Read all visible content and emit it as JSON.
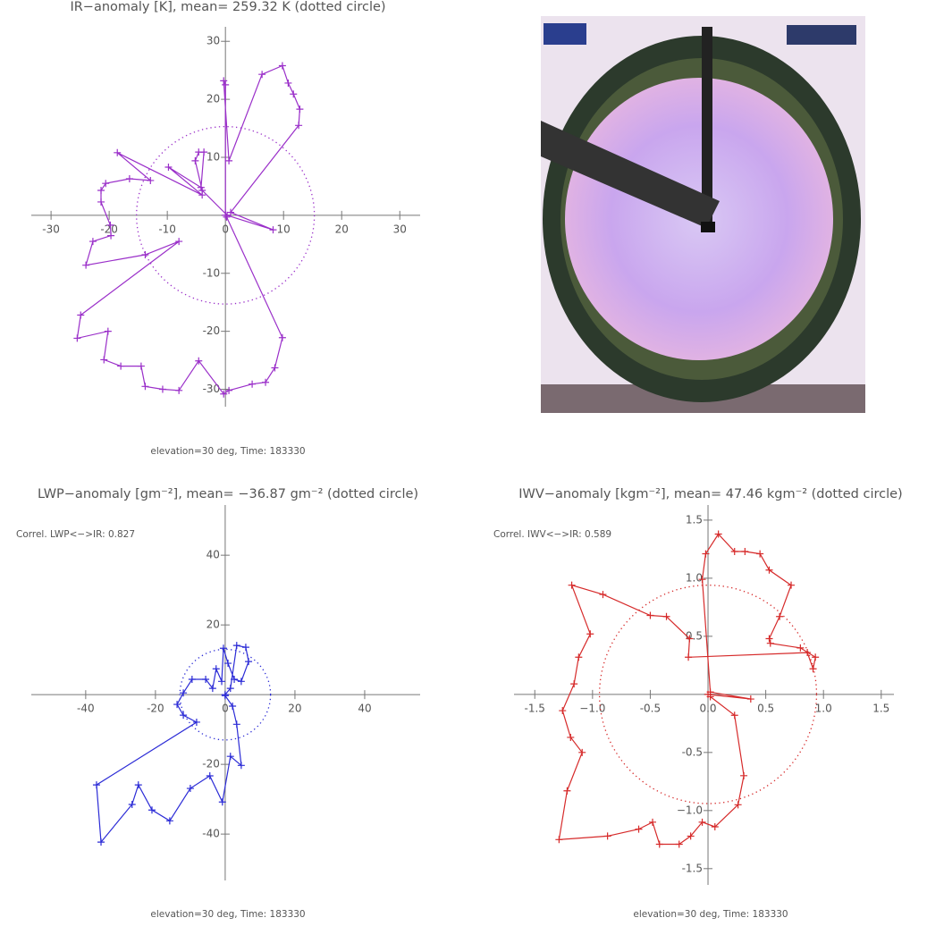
{
  "chart_data": [
    {
      "type": "line",
      "title": "IR−anomaly [K], mean= 259.32 K (dotted circle)",
      "footer": "elevation=30 deg, Time: 183330",
      "color": "#9a2fc9",
      "xlim": [
        -33.4,
        33.5
      ],
      "ylim": [
        -33,
        32.5
      ],
      "xticks": [
        -30,
        -20,
        -10,
        0,
        10,
        20,
        30
      ],
      "yticks": [
        -30,
        -20,
        -10,
        0,
        10,
        20,
        30
      ],
      "circle_radius": 15.3,
      "x": [
        0,
        0,
        -0.3,
        0.6,
        6.3,
        9.8,
        10.8,
        11.7,
        12.8,
        12.6,
        0.9,
        8.2,
        0.3,
        -4,
        -5.2,
        -4.6,
        -3.7,
        -4.2,
        -9.8,
        -4,
        -18.6,
        -12.9,
        -16.5,
        -20.6,
        -21.4,
        -21.4,
        -19.8,
        -19.7,
        -22.8,
        -24,
        -13.8,
        -8,
        -24.9,
        -25.5,
        -20.2,
        -20.9,
        -18,
        -14.5,
        -13.8,
        -10.8,
        -8,
        -4.6,
        -0.3,
        0.6,
        4.6,
        6.9,
        8.5,
        9.8,
        0.2
      ],
      "y": [
        0,
        22.5,
        23.2,
        9.4,
        24.3,
        25.8,
        22.8,
        20.9,
        18.3,
        15.5,
        0.5,
        -2.5,
        0,
        4.3,
        9.4,
        10.9,
        10.9,
        4.8,
        8.3,
        3.5,
        10.8,
        6,
        6.3,
        5.5,
        4.3,
        2.3,
        -1.7,
        -3.5,
        -4.5,
        -8.6,
        -6.8,
        -4.5,
        -17.2,
        -21.2,
        -20,
        -24.9,
        -26,
        -26,
        -29.5,
        -30,
        -30.2,
        -25.1,
        -30.8,
        -30.2,
        -29.1,
        -28.8,
        -26.3,
        -21.1,
        -0.3
      ]
    },
    {
      "type": "line",
      "title": "LWP−anomaly [gm⁻²], mean= −36.87 gm⁻² (dotted circle)",
      "annotation": "Correl. LWP<−>IR:  0.827",
      "footer": "elevation=30 deg, Time: 183330",
      "color": "#2b2bd6",
      "xlim": [
        -55.6,
        55.9
      ],
      "ylim": [
        -53.3,
        54.4
      ],
      "xticks": [
        -40,
        -20,
        0,
        20,
        40
      ],
      "yticks": [
        -40,
        -20,
        0,
        20,
        40
      ],
      "circle_radius": 13,
      "x": [
        0,
        1.5,
        3.3,
        5.9,
        6.7,
        4.6,
        2.6,
        0.8,
        -0.5,
        -1,
        -2.6,
        -3.6,
        -5.6,
        -9.5,
        -12,
        -13.8,
        -12,
        -8.2,
        -36.9,
        -35.6,
        -26.7,
        -24.9,
        -21,
        -15.9,
        -10,
        -4.4,
        -0.8,
        1.5,
        4.6,
        3.3,
        2.1,
        0
      ],
      "y": [
        0,
        1.8,
        14.1,
        13.6,
        9.5,
        3.8,
        4.4,
        9,
        13.3,
        3.8,
        7.4,
        1.8,
        4.4,
        4.4,
        0.5,
        -2.8,
        -5.9,
        -7.9,
        -25.9,
        -42.3,
        -31.5,
        -25.9,
        -33.1,
        -36.2,
        -26.9,
        -23.3,
        -30.8,
        -17.7,
        -20.3,
        -8.5,
        -3.3,
        -0.3
      ]
    },
    {
      "type": "line",
      "title": "IWV−anomaly [kgm⁻²], mean=  47.46 kgm⁻² (dotted circle)",
      "annotation": "Correl. IWV<−>IR:  0.589",
      "footer": "elevation=30 deg, Time: 183330",
      "color": "#d62a2a",
      "xlim": [
        -1.68,
        1.61
      ],
      "ylim": [
        -1.64,
        1.63
      ],
      "xticks": [
        -1.5,
        {
          "value": -1,
          "label": "−1.0"
        },
        -0.5,
        {
          "value": 0,
          "label": "0.0"
        },
        0.5,
        {
          "value": 1,
          "label": "1.0"
        },
        1.5
      ],
      "yticks": [
        -1.5,
        {
          "value": -1,
          "label": "−1.0"
        },
        -0.5,
        {
          "value": 0,
          "label": "0.0"
        },
        0.5,
        {
          "value": 1,
          "label": "1.0"
        },
        1.5
      ],
      "circle_radius": 0.94,
      "x": [
        0,
        0.37,
        0.02,
        -0.05,
        -0.02,
        0.09,
        0.23,
        0.32,
        0.45,
        0.53,
        0.72,
        0.62,
        0.53,
        0.54,
        0.8,
        0.93,
        0.91,
        0.86,
        -0.17,
        -0.16,
        -0.36,
        -0.5,
        -0.91,
        -1.18,
        -1.02,
        -1.12,
        -1.16,
        -1.26,
        -1.19,
        -1.09,
        -1.22,
        -1.29,
        -0.87,
        -0.6,
        -0.48,
        -0.42,
        -0.25,
        -0.15,
        -0.05,
        0.06,
        0.26,
        0.31,
        0.23,
        0.02
      ],
      "y": [
        0,
        -0.04,
        0.02,
        0.99,
        1.21,
        1.38,
        1.23,
        1.23,
        1.21,
        1.07,
        0.94,
        0.67,
        0.48,
        0.44,
        0.4,
        0.32,
        0.22,
        0.36,
        0.32,
        0.48,
        0.67,
        0.68,
        0.86,
        0.94,
        0.52,
        0.32,
        0.09,
        -0.14,
        -0.37,
        -0.5,
        -0.83,
        -1.25,
        -1.22,
        -1.16,
        -1.1,
        -1.29,
        -1.29,
        -1.22,
        -1.1,
        -1.14,
        -0.95,
        -0.7,
        -0.18,
        -0.02
      ]
    }
  ]
}
